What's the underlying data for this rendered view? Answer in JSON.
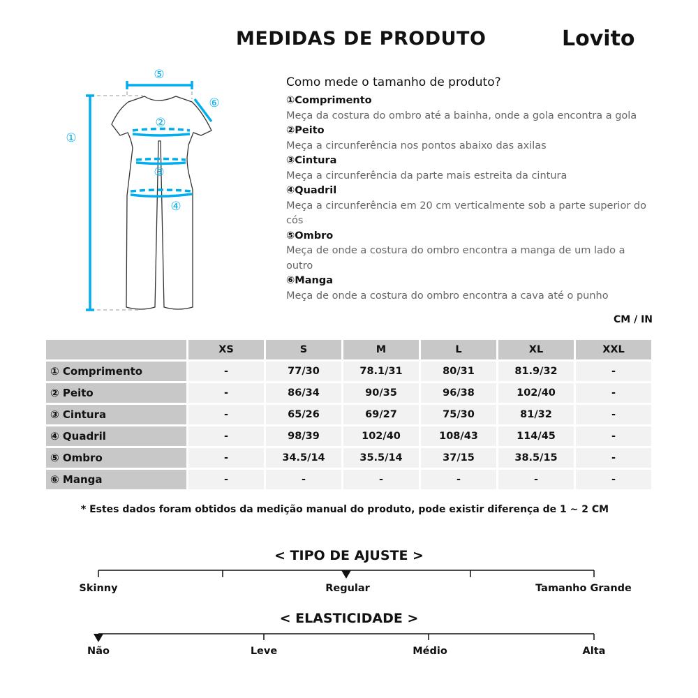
{
  "header": {
    "title": "MEDIDAS DE PRODUTO",
    "logo": "Lovito"
  },
  "figure": {
    "labels": [
      "①",
      "②",
      "③",
      "④",
      "⑤",
      "⑥"
    ],
    "accent": "#00aeef"
  },
  "howto": {
    "heading": "Como mede o tamanho de produto?",
    "items": [
      {
        "name": "①Comprimento",
        "desc": "Meça da costura do ombro até a bainha, onde a gola encontra a gola"
      },
      {
        "name": "②Peito",
        "desc": "Meça a circunferência nos pontos abaixo das axilas"
      },
      {
        "name": "③Cintura",
        "desc": "Meça a circunferência da parte mais estreita da cintura"
      },
      {
        "name": "④Quadril",
        "desc": "Meça a circunferência em 20 cm verticalmente sob a parte superior do cós"
      },
      {
        "name": "⑤Ombro",
        "desc": "Meça de onde a costura do ombro encontra a manga de um lado a outro"
      },
      {
        "name": "⑥Manga",
        "desc": "Meça de onde a costura do ombro encontra a cava até o punho"
      }
    ]
  },
  "unit": "CM / IN",
  "table": {
    "sizes": [
      "XS",
      "S",
      "M",
      "L",
      "XL",
      "XXL"
    ],
    "rows": [
      {
        "label": "① Comprimento",
        "values": [
          "-",
          "77/30",
          "78.1/31",
          "80/31",
          "81.9/32",
          "-"
        ]
      },
      {
        "label": "② Peito",
        "values": [
          "-",
          "86/34",
          "90/35",
          "96/38",
          "102/40",
          "-"
        ]
      },
      {
        "label": "③ Cintura",
        "values": [
          "-",
          "65/26",
          "69/27",
          "75/30",
          "81/32",
          "-"
        ]
      },
      {
        "label": "④ Quadril",
        "values": [
          "-",
          "98/39",
          "102/40",
          "108/43",
          "114/45",
          "-"
        ]
      },
      {
        "label": "⑤ Ombro",
        "values": [
          "-",
          "34.5/14",
          "35.5/14",
          "37/15",
          "38.5/15",
          "-"
        ]
      },
      {
        "label": "⑥ Manga",
        "values": [
          "-",
          "-",
          "-",
          "-",
          "-",
          "-"
        ]
      }
    ]
  },
  "note": "* Estes dados foram obtidos da medição manual do produto, pode existir diferença de 1 ~ 2 CM",
  "fit": {
    "title": "< TIPO DE AJUSTE >",
    "labels": [
      "Skinny",
      "Regular",
      "Tamanho Grande"
    ],
    "selected": "Regular"
  },
  "elasticity": {
    "title": "< ELASTICIDADE >",
    "labels": [
      "Não",
      "Leve",
      "Médio",
      "Alta"
    ],
    "selected": "Não"
  }
}
